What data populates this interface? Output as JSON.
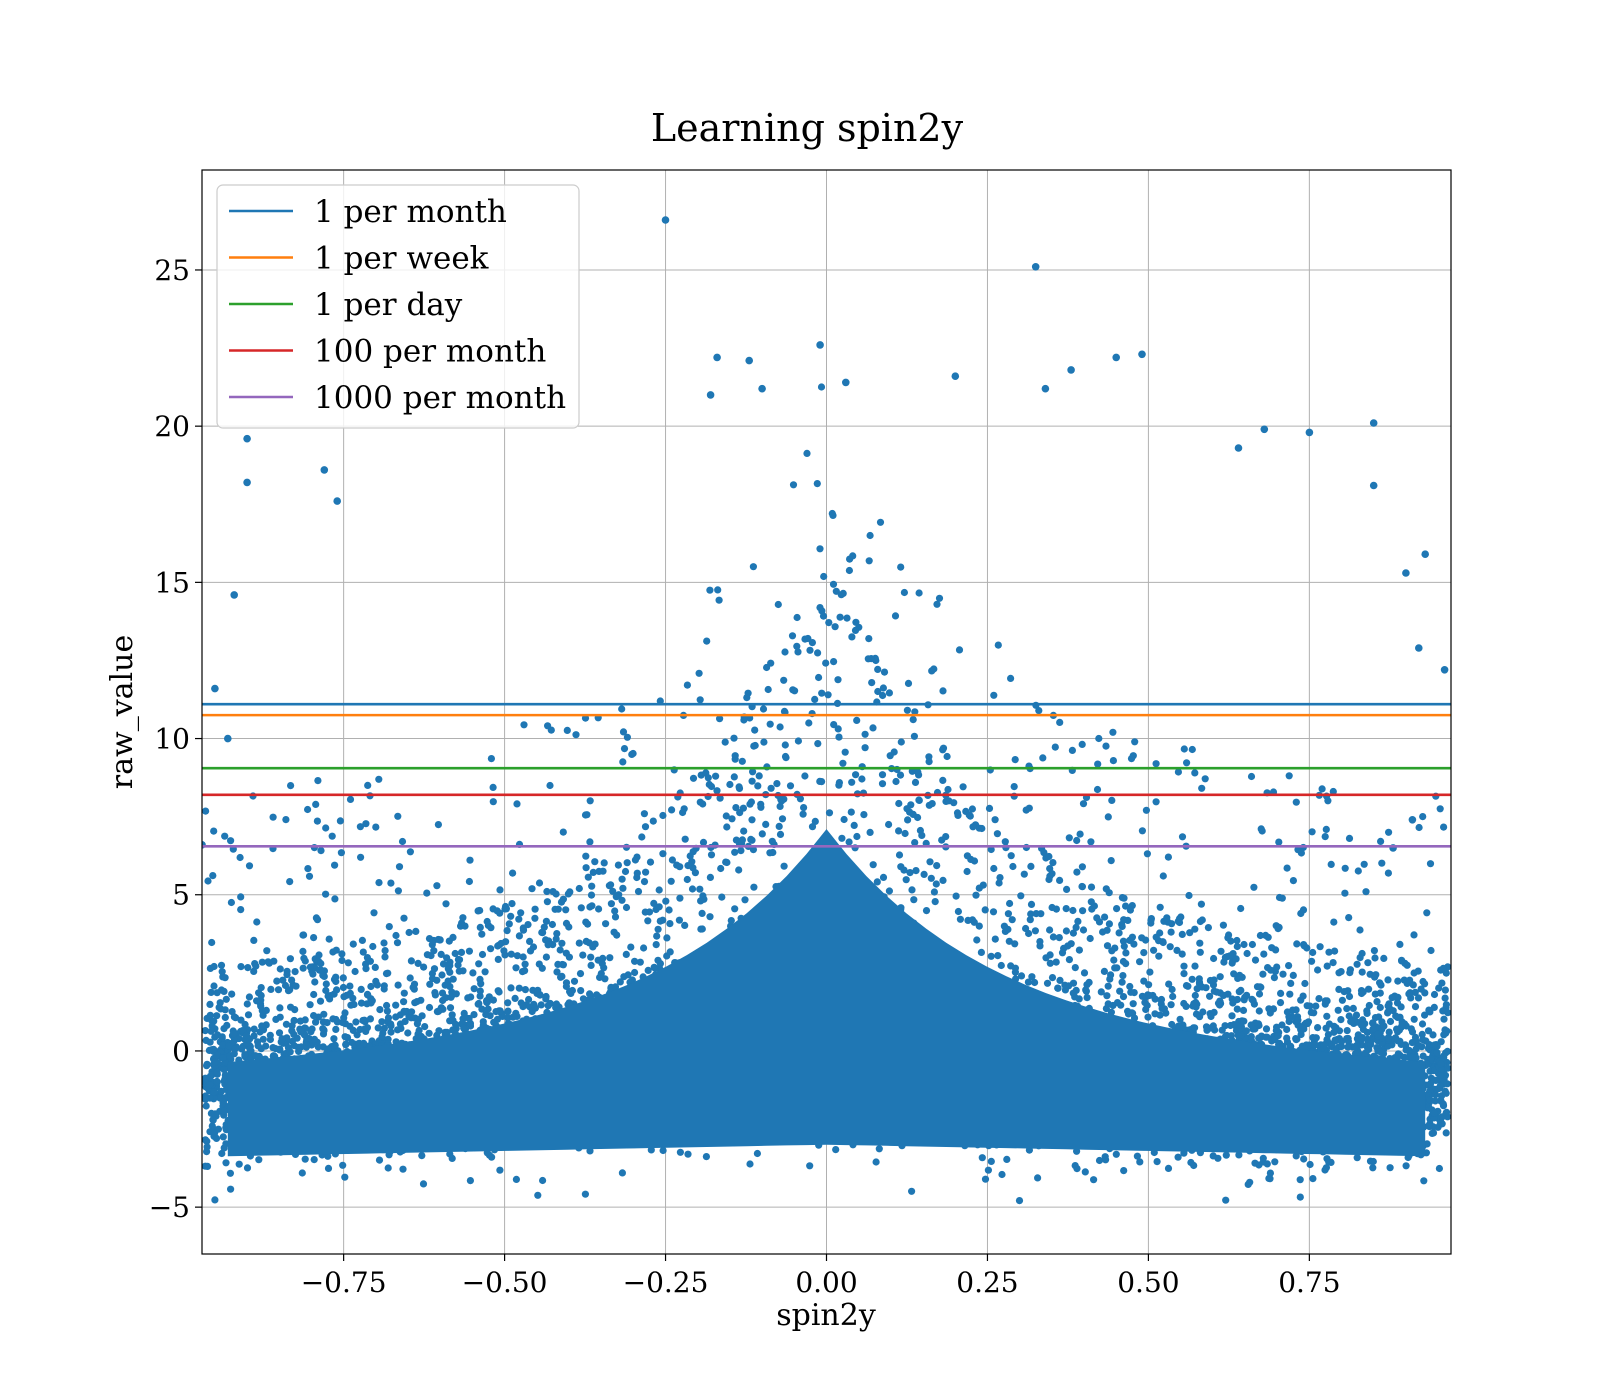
{
  "chart_data": {
    "type": "scatter",
    "title": "Learning spin2y",
    "xlabel": "spin2y",
    "ylabel": "raw_value",
    "xlim": [
      -0.97,
      0.97
    ],
    "ylim": [
      -6.5,
      28.2
    ],
    "grid": true,
    "legend_position": "upper-left",
    "x_ticks": [
      {
        "value": -0.75,
        "label": "−0.75"
      },
      {
        "value": -0.5,
        "label": "−0.50"
      },
      {
        "value": -0.25,
        "label": "−0.25"
      },
      {
        "value": 0.0,
        "label": "0.00"
      },
      {
        "value": 0.25,
        "label": "0.25"
      },
      {
        "value": 0.5,
        "label": "0.50"
      },
      {
        "value": 0.75,
        "label": "0.75"
      }
    ],
    "y_ticks": [
      {
        "value": -5,
        "label": "−5"
      },
      {
        "value": 0,
        "label": "0"
      },
      {
        "value": 5,
        "label": "5"
      },
      {
        "value": 10,
        "label": "10"
      },
      {
        "value": 15,
        "label": "15"
      },
      {
        "value": 20,
        "label": "20"
      },
      {
        "value": 25,
        "label": "25"
      }
    ],
    "scatter_color": "#1f77b4",
    "outlier_points": [
      {
        "x": -0.25,
        "y": 26.6
      },
      {
        "x": 0.325,
        "y": 25.1
      },
      {
        "x": -0.01,
        "y": 22.6
      },
      {
        "x": 0.49,
        "y": 22.3
      },
      {
        "x": -0.17,
        "y": 22.2
      },
      {
        "x": -0.12,
        "y": 22.1
      },
      {
        "x": 0.45,
        "y": 22.2
      },
      {
        "x": 0.38,
        "y": 21.8
      },
      {
        "x": 0.2,
        "y": 21.6
      },
      {
        "x": 0.03,
        "y": 21.4
      },
      {
        "x": -0.1,
        "y": 21.2
      },
      {
        "x": 0.34,
        "y": 21.2
      },
      {
        "x": -0.18,
        "y": 21.0
      },
      {
        "x": -0.9,
        "y": 19.6
      },
      {
        "x": 0.85,
        "y": 20.1
      },
      {
        "x": 0.68,
        "y": 19.9
      },
      {
        "x": 0.75,
        "y": 19.8
      },
      {
        "x": 0.64,
        "y": 19.3
      },
      {
        "x": -0.9,
        "y": 18.2
      },
      {
        "x": 0.85,
        "y": 18.1
      },
      {
        "x": -0.78,
        "y": 18.6
      },
      {
        "x": -0.76,
        "y": 17.6
      },
      {
        "x": -0.92,
        "y": 14.6
      },
      {
        "x": 0.9,
        "y": 15.3
      },
      {
        "x": 0.93,
        "y": 15.9
      },
      {
        "x": -0.95,
        "y": 11.6
      },
      {
        "x": 0.96,
        "y": 12.2
      },
      {
        "x": 0.92,
        "y": 12.9
      },
      {
        "x": -0.93,
        "y": 10.0
      },
      {
        "x": -0.97,
        "y": 6.6
      },
      {
        "x": 0.91,
        "y": 7.4
      },
      {
        "x": 0.88,
        "y": 6.5
      }
    ],
    "series": [
      {
        "name": "1 per month",
        "type": "hline",
        "y": 11.1,
        "color": "#1f77b4"
      },
      {
        "name": "1 per week",
        "type": "hline",
        "y": 10.75,
        "color": "#ff7f0e"
      },
      {
        "name": "1 per day",
        "type": "hline",
        "y": 9.05,
        "color": "#2ca02c"
      },
      {
        "name": "100 per month",
        "type": "hline",
        "y": 8.2,
        "color": "#d62728"
      },
      {
        "name": "1000 per month",
        "type": "hline",
        "y": 6.55,
        "color": "#9467bd"
      }
    ]
  }
}
